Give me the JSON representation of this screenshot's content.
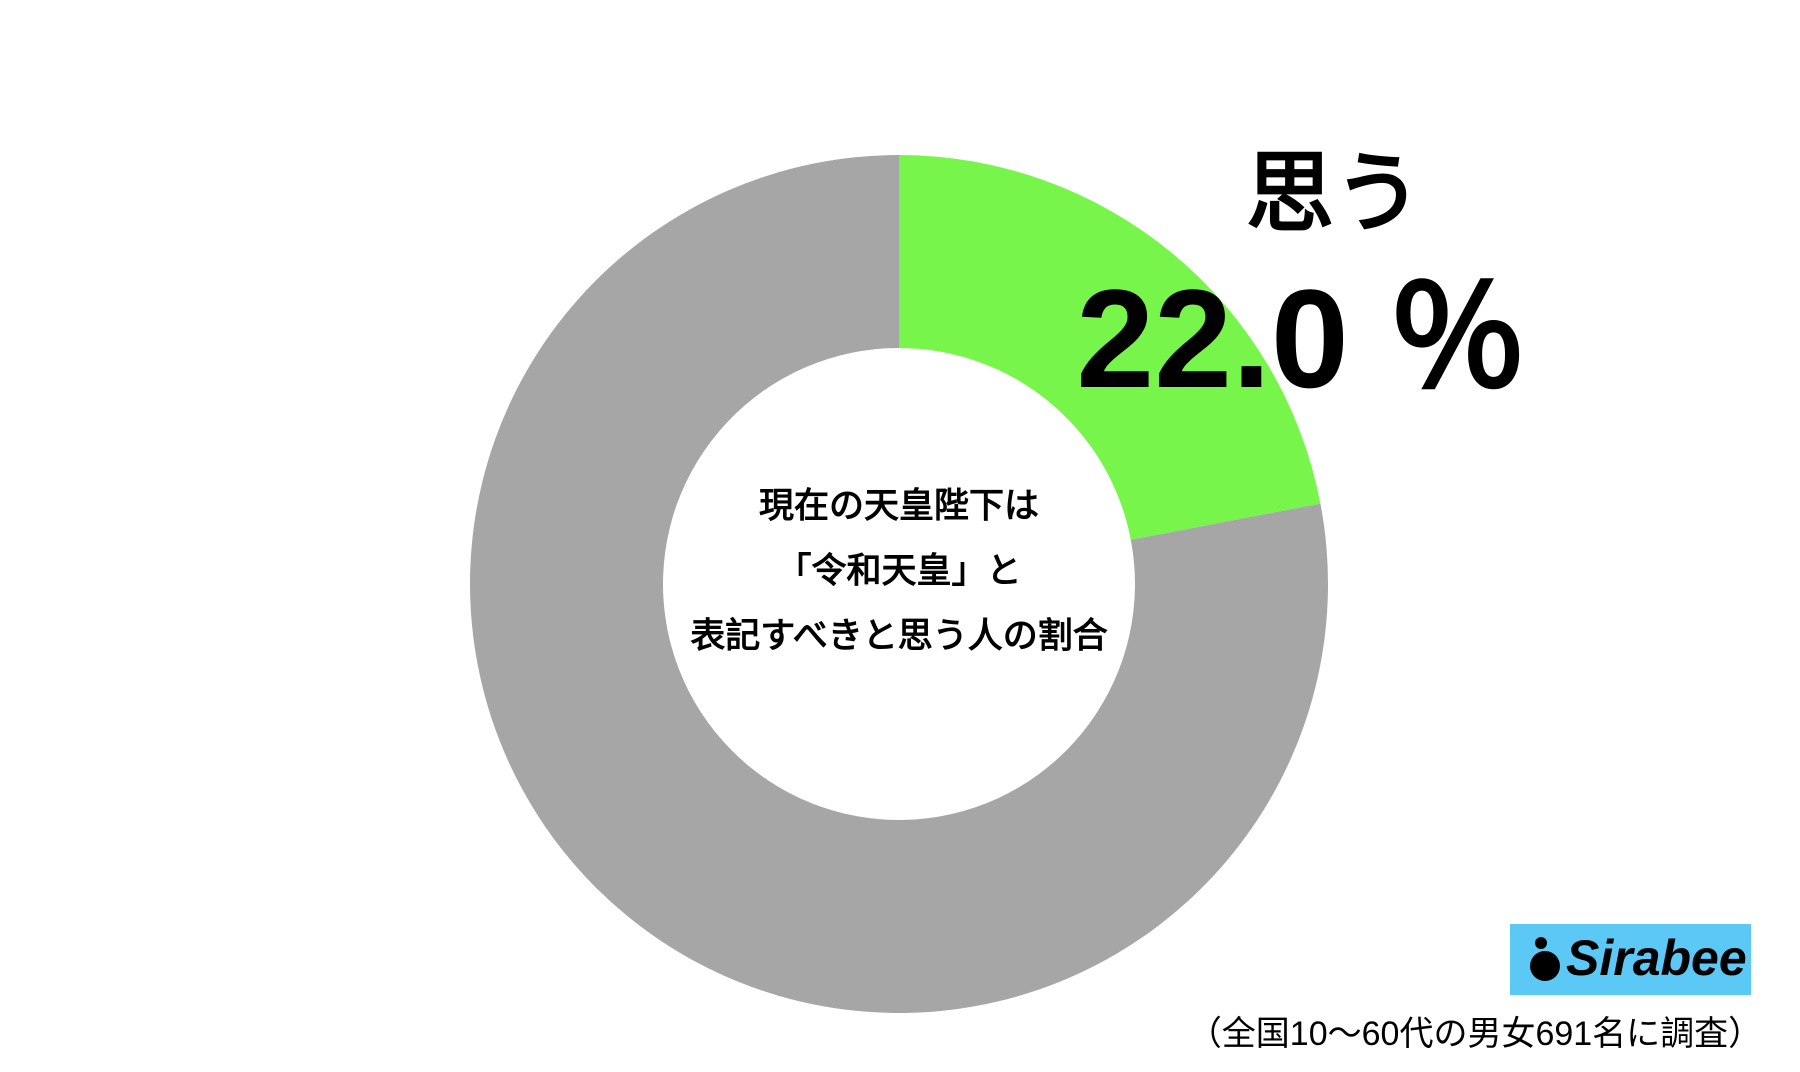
{
  "chart_data": {
    "type": "donut",
    "categories": [
      "思う",
      null
    ],
    "values": [
      22.0,
      78.0
    ],
    "value_labels": [
      "22.0 ％",
      null
    ],
    "colors": [
      "#77f54a",
      "#a6a6a6"
    ],
    "center_text": [
      "現在の天皇陛下は",
      "「令和天皇」と",
      "表記すべきと思う人の割合"
    ],
    "logo": "Sirabee",
    "note": "（全国10〜60代の男女691名に調査）"
  }
}
